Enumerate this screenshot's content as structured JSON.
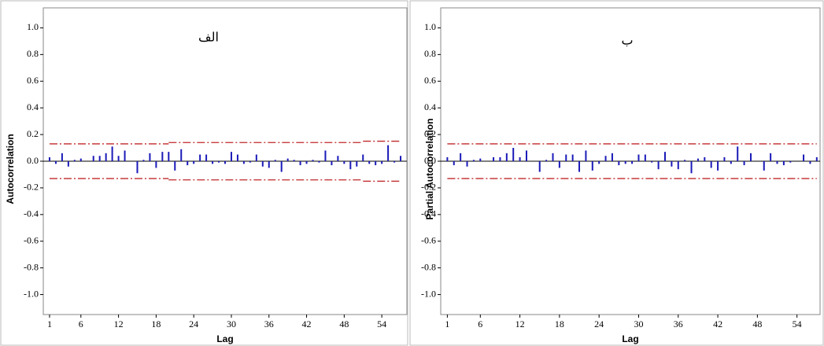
{
  "chart_data": [
    {
      "type": "bar",
      "title": "الف",
      "y_label": "Autocorrelation",
      "x_label": "Lag",
      "color": "#1a1ab8",
      "limit_color": "#c0282a",
      "x": [
        1,
        2,
        3,
        4,
        5,
        6,
        7,
        8,
        9,
        10,
        11,
        12,
        13,
        14,
        15,
        16,
        17,
        18,
        19,
        20,
        21,
        22,
        23,
        24,
        25,
        26,
        27,
        28,
        29,
        30,
        31,
        32,
        33,
        34,
        35,
        36,
        37,
        38,
        39,
        40,
        41,
        42,
        43,
        44,
        45,
        46,
        47,
        48,
        49,
        50,
        51,
        52,
        53,
        54,
        55,
        56,
        57
      ],
      "values": [
        0.03,
        -0.02,
        0.06,
        -0.04,
        0.01,
        0.02,
        0.0,
        0.04,
        0.04,
        0.06,
        0.11,
        0.04,
        0.08,
        0.0,
        -0.09,
        0.01,
        0.06,
        -0.05,
        0.07,
        0.07,
        -0.07,
        0.09,
        -0.03,
        -0.02,
        0.05,
        0.05,
        -0.02,
        -0.01,
        -0.02,
        0.07,
        0.05,
        -0.02,
        -0.01,
        0.05,
        -0.04,
        -0.05,
        0.01,
        -0.08,
        0.02,
        0.01,
        -0.03,
        -0.02,
        0.01,
        -0.01,
        0.08,
        -0.03,
        0.04,
        -0.02,
        -0.06,
        -0.04,
        0.05,
        -0.02,
        -0.03,
        -0.02,
        0.12,
        -0.01,
        0.04
      ],
      "limit_segments": [
        {
          "x": [
            1,
            20
          ],
          "upper": 0.13,
          "lower": -0.13
        },
        {
          "x": [
            20,
            51
          ],
          "upper": 0.14,
          "lower": -0.14
        },
        {
          "x": [
            51,
            57
          ],
          "upper": 0.15,
          "lower": -0.15
        }
      ],
      "xlim": [
        0,
        58
      ],
      "ylim": [
        -1.15,
        1.15
      ],
      "xticks": [
        1,
        6,
        12,
        18,
        24,
        30,
        36,
        42,
        48,
        54
      ],
      "yticks": [
        {
          "value": 1,
          "label": "1.0"
        },
        0.8,
        0.6,
        0.4,
        0.2,
        {
          "value": 0,
          "label": "0.0"
        },
        -0.2,
        -0.4,
        -0.6,
        -0.8,
        {
          "value": -1,
          "label": "-1.0"
        }
      ]
    },
    {
      "type": "bar",
      "title": "ب",
      "y_label": "Partial Autocorrelation",
      "x_label": "Lag",
      "color": "#1a1ab8",
      "limit_color": "#c0282a",
      "x": [
        1,
        2,
        3,
        4,
        5,
        6,
        7,
        8,
        9,
        10,
        11,
        12,
        13,
        14,
        15,
        16,
        17,
        18,
        19,
        20,
        21,
        22,
        23,
        24,
        25,
        26,
        27,
        28,
        29,
        30,
        31,
        32,
        33,
        34,
        35,
        36,
        37,
        38,
        39,
        40,
        41,
        42,
        43,
        44,
        45,
        46,
        47,
        48,
        49,
        50,
        51,
        52,
        53,
        54,
        55,
        56,
        57
      ],
      "values": [
        0.03,
        -0.03,
        0.06,
        -0.04,
        0.01,
        0.02,
        0.0,
        0.03,
        0.03,
        0.06,
        0.1,
        0.03,
        0.08,
        0.0,
        -0.08,
        0.01,
        0.06,
        -0.05,
        0.05,
        0.05,
        -0.08,
        0.08,
        -0.07,
        -0.02,
        0.04,
        0.06,
        -0.03,
        -0.02,
        -0.02,
        0.05,
        0.05,
        -0.01,
        -0.06,
        0.07,
        -0.04,
        -0.06,
        0.01,
        -0.09,
        0.02,
        0.03,
        -0.05,
        -0.07,
        0.03,
        -0.02,
        0.11,
        -0.03,
        0.06,
        0.0,
        -0.07,
        0.06,
        -0.02,
        -0.03,
        -0.01,
        0.0,
        0.05,
        -0.02,
        0.03
      ],
      "limit_segments": [
        {
          "x": [
            1,
            57
          ],
          "upper": 0.13,
          "lower": -0.13
        }
      ],
      "xlim": [
        0,
        57.5
      ],
      "ylim": [
        -1.15,
        1.15
      ],
      "xticks": [
        1,
        6,
        12,
        18,
        24,
        30,
        36,
        42,
        48,
        54
      ],
      "yticks": [
        {
          "value": 1,
          "label": "1.0"
        },
        0.8,
        0.6,
        0.4,
        0.2,
        {
          "value": 0,
          "label": "0.0"
        },
        -0.2,
        -0.4,
        -0.6,
        -0.8,
        {
          "value": -1,
          "label": "-1.0"
        }
      ]
    }
  ]
}
